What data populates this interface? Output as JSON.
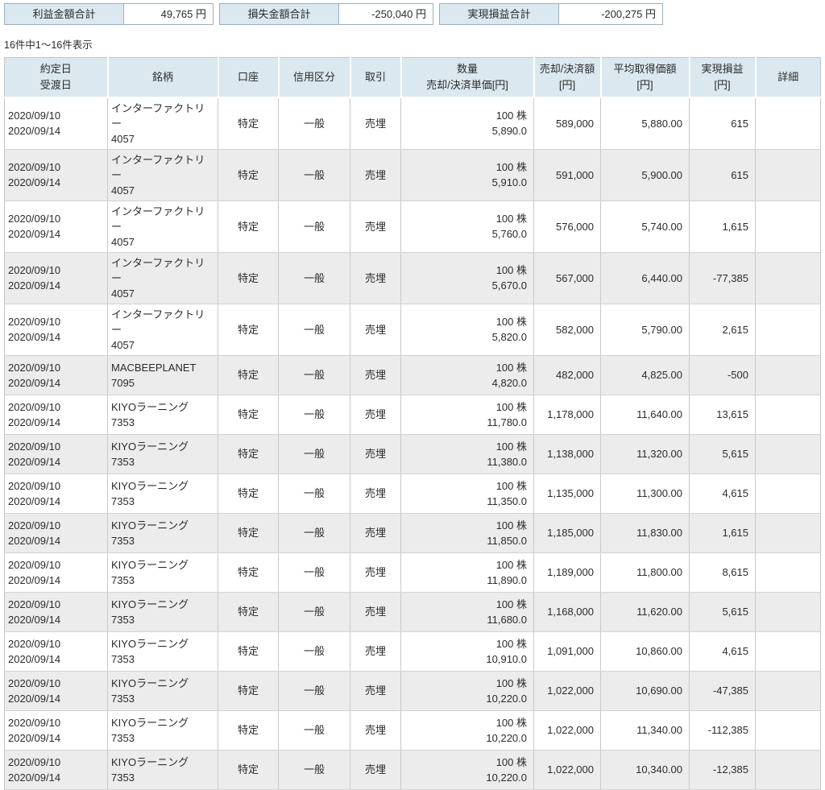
{
  "summary": {
    "items": [
      {
        "label": "利益金額合計",
        "value": "49,765 円"
      },
      {
        "label": "損失金額合計",
        "value": "-250,040 円"
      },
      {
        "label": "実現損益合計",
        "value": "-200,275 円"
      }
    ]
  },
  "count_text": "16件中1〜16件表示",
  "colors": {
    "panel_blue": "#dbe8f0",
    "row_stripe": "#ececec",
    "box_border": "#9ab0c0",
    "grid_line": "#c9c9c9"
  },
  "table": {
    "headers": [
      {
        "lines": [
          "約定日",
          "受渡日"
        ]
      },
      {
        "lines": [
          "銘柄"
        ]
      },
      {
        "lines": [
          "口座"
        ]
      },
      {
        "lines": [
          "信用区分"
        ]
      },
      {
        "lines": [
          "取引"
        ]
      },
      {
        "lines": [
          "数量",
          "売却/決済単価[円]"
        ]
      },
      {
        "lines": [
          "売却/決済額",
          "[円]"
        ]
      },
      {
        "lines": [
          "平均取得価額",
          "[円]"
        ]
      },
      {
        "lines": [
          "実現損益",
          "[円]"
        ]
      },
      {
        "lines": [
          "詳細"
        ]
      }
    ],
    "rows": [
      {
        "date1": "2020/09/10",
        "date2": "2020/09/14",
        "name": "インターファクトリー",
        "code": "4057",
        "account": "特定",
        "margin": "一般",
        "trade": "売埋",
        "qty": "100 株",
        "unit_price": "5,890.0",
        "amount": "589,000",
        "avg_price": "5,880.00",
        "pl": "615",
        "detail": ""
      },
      {
        "date1": "2020/09/10",
        "date2": "2020/09/14",
        "name": "インターファクトリー",
        "code": "4057",
        "account": "特定",
        "margin": "一般",
        "trade": "売埋",
        "qty": "100 株",
        "unit_price": "5,910.0",
        "amount": "591,000",
        "avg_price": "5,900.00",
        "pl": "615",
        "detail": ""
      },
      {
        "date1": "2020/09/10",
        "date2": "2020/09/14",
        "name": "インターファクトリー",
        "code": "4057",
        "account": "特定",
        "margin": "一般",
        "trade": "売埋",
        "qty": "100 株",
        "unit_price": "5,760.0",
        "amount": "576,000",
        "avg_price": "5,740.00",
        "pl": "1,615",
        "detail": ""
      },
      {
        "date1": "2020/09/10",
        "date2": "2020/09/14",
        "name": "インターファクトリー",
        "code": "4057",
        "account": "特定",
        "margin": "一般",
        "trade": "売埋",
        "qty": "100 株",
        "unit_price": "5,670.0",
        "amount": "567,000",
        "avg_price": "6,440.00",
        "pl": "-77,385",
        "detail": ""
      },
      {
        "date1": "2020/09/10",
        "date2": "2020/09/14",
        "name": "インターファクトリー",
        "code": "4057",
        "account": "特定",
        "margin": "一般",
        "trade": "売埋",
        "qty": "100 株",
        "unit_price": "5,820.0",
        "amount": "582,000",
        "avg_price": "5,790.00",
        "pl": "2,615",
        "detail": ""
      },
      {
        "date1": "2020/09/10",
        "date2": "2020/09/14",
        "name": "MACBEEPLANET",
        "code": "7095",
        "account": "特定",
        "margin": "一般",
        "trade": "売埋",
        "qty": "100 株",
        "unit_price": "4,820.0",
        "amount": "482,000",
        "avg_price": "4,825.00",
        "pl": "-500",
        "detail": ""
      },
      {
        "date1": "2020/09/10",
        "date2": "2020/09/14",
        "name": "KIYOラーニング",
        "code": "7353",
        "account": "特定",
        "margin": "一般",
        "trade": "売埋",
        "qty": "100 株",
        "unit_price": "11,780.0",
        "amount": "1,178,000",
        "avg_price": "11,640.00",
        "pl": "13,615",
        "detail": ""
      },
      {
        "date1": "2020/09/10",
        "date2": "2020/09/14",
        "name": "KIYOラーニング",
        "code": "7353",
        "account": "特定",
        "margin": "一般",
        "trade": "売埋",
        "qty": "100 株",
        "unit_price": "11,380.0",
        "amount": "1,138,000",
        "avg_price": "11,320.00",
        "pl": "5,615",
        "detail": ""
      },
      {
        "date1": "2020/09/10",
        "date2": "2020/09/14",
        "name": "KIYOラーニング",
        "code": "7353",
        "account": "特定",
        "margin": "一般",
        "trade": "売埋",
        "qty": "100 株",
        "unit_price": "11,350.0",
        "amount": "1,135,000",
        "avg_price": "11,300.00",
        "pl": "4,615",
        "detail": ""
      },
      {
        "date1": "2020/09/10",
        "date2": "2020/09/14",
        "name": "KIYOラーニング",
        "code": "7353",
        "account": "特定",
        "margin": "一般",
        "trade": "売埋",
        "qty": "100 株",
        "unit_price": "11,850.0",
        "amount": "1,185,000",
        "avg_price": "11,830.00",
        "pl": "1,615",
        "detail": ""
      },
      {
        "date1": "2020/09/10",
        "date2": "2020/09/14",
        "name": "KIYOラーニング",
        "code": "7353",
        "account": "特定",
        "margin": "一般",
        "trade": "売埋",
        "qty": "100 株",
        "unit_price": "11,890.0",
        "amount": "1,189,000",
        "avg_price": "11,800.00",
        "pl": "8,615",
        "detail": ""
      },
      {
        "date1": "2020/09/10",
        "date2": "2020/09/14",
        "name": "KIYOラーニング",
        "code": "7353",
        "account": "特定",
        "margin": "一般",
        "trade": "売埋",
        "qty": "100 株",
        "unit_price": "11,680.0",
        "amount": "1,168,000",
        "avg_price": "11,620.00",
        "pl": "5,615",
        "detail": ""
      },
      {
        "date1": "2020/09/10",
        "date2": "2020/09/14",
        "name": "KIYOラーニング",
        "code": "7353",
        "account": "特定",
        "margin": "一般",
        "trade": "売埋",
        "qty": "100 株",
        "unit_price": "10,910.0",
        "amount": "1,091,000",
        "avg_price": "10,860.00",
        "pl": "4,615",
        "detail": ""
      },
      {
        "date1": "2020/09/10",
        "date2": "2020/09/14",
        "name": "KIYOラーニング",
        "code": "7353",
        "account": "特定",
        "margin": "一般",
        "trade": "売埋",
        "qty": "100 株",
        "unit_price": "10,220.0",
        "amount": "1,022,000",
        "avg_price": "10,690.00",
        "pl": "-47,385",
        "detail": ""
      },
      {
        "date1": "2020/09/10",
        "date2": "2020/09/14",
        "name": "KIYOラーニング",
        "code": "7353",
        "account": "特定",
        "margin": "一般",
        "trade": "売埋",
        "qty": "100 株",
        "unit_price": "10,220.0",
        "amount": "1,022,000",
        "avg_price": "11,340.00",
        "pl": "-112,385",
        "detail": ""
      },
      {
        "date1": "2020/09/10",
        "date2": "2020/09/14",
        "name": "KIYOラーニング",
        "code": "7353",
        "account": "特定",
        "margin": "一般",
        "trade": "売埋",
        "qty": "100 株",
        "unit_price": "10,220.0",
        "amount": "1,022,000",
        "avg_price": "10,340.00",
        "pl": "-12,385",
        "detail": ""
      }
    ]
  }
}
